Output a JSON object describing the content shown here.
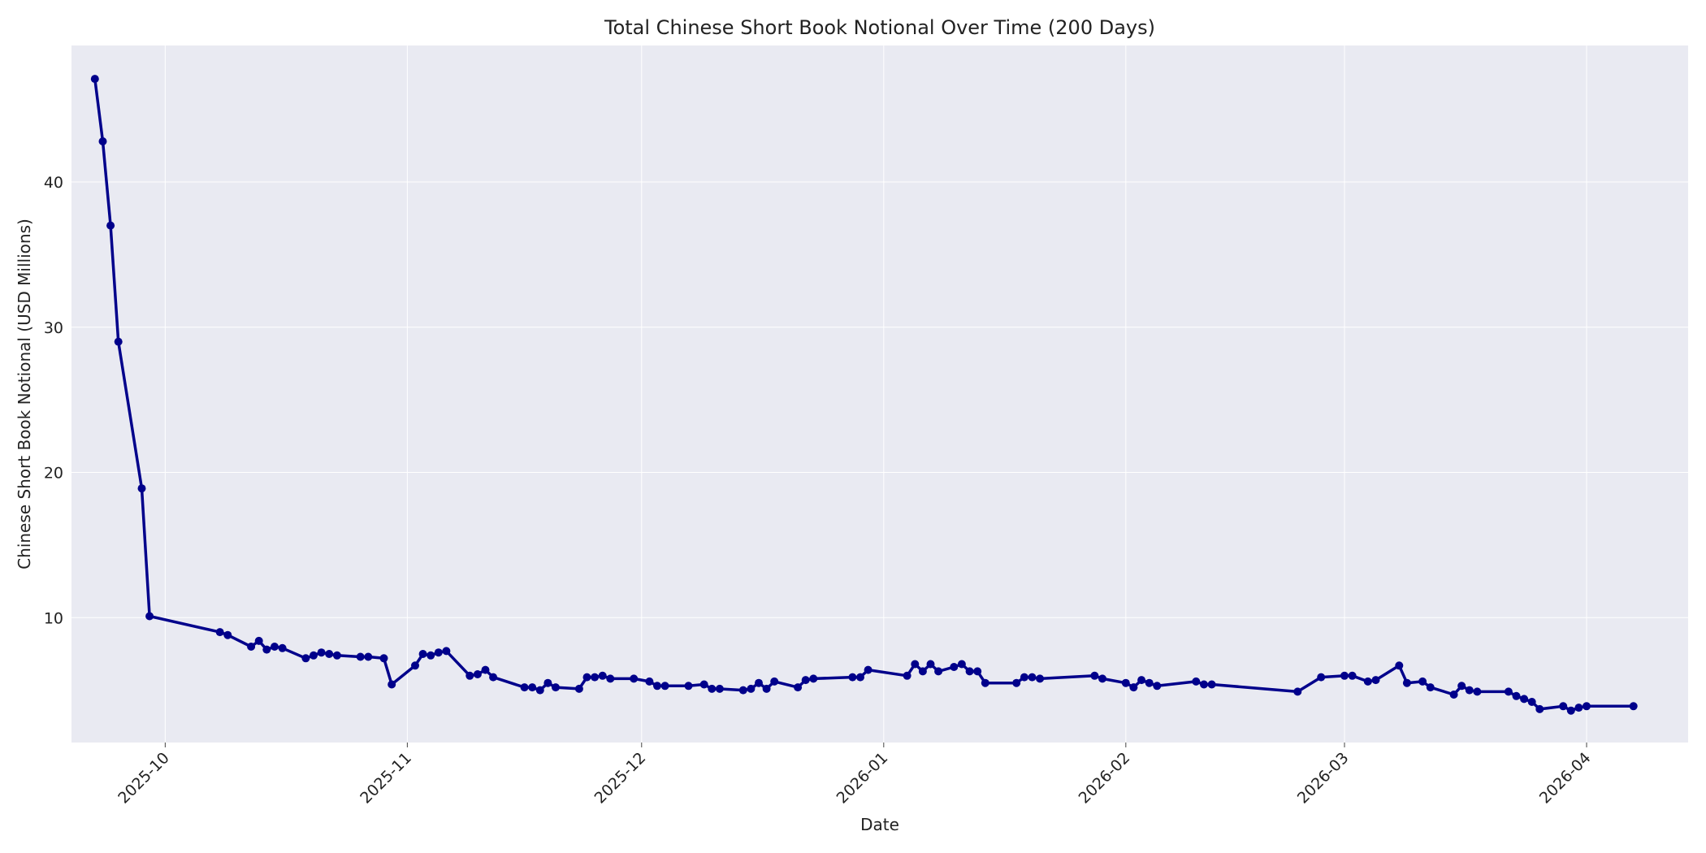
{
  "chart_data": {
    "type": "line",
    "title": "Total Chinese Short Book Notional Over Time (200 Days)",
    "xlabel": "Date",
    "ylabel": "Chinese Short Book Notional (USD Millions)",
    "xlim": [
      "2025-09-19",
      "2026-04-14"
    ],
    "ylim": [
      1.4,
      49.4
    ],
    "x_ticks": [
      "2025-10",
      "2025-11",
      "2025-12",
      "2026-01",
      "2026-02",
      "2026-03",
      "2026-04"
    ],
    "y_ticks": [
      10,
      20,
      30,
      40
    ],
    "grid": true,
    "background": "#e9eaf2",
    "line_color": "#00008b",
    "marker": "circle",
    "series": [
      {
        "x": [
          "2025-09-22",
          "2025-09-23",
          "2025-09-24",
          "2025-09-25",
          "2025-09-28",
          "2025-09-29",
          "2025-10-08",
          "2025-10-09",
          "2025-10-12",
          "2025-10-13",
          "2025-10-14",
          "2025-10-15",
          "2025-10-16",
          "2025-10-19",
          "2025-10-20",
          "2025-10-21",
          "2025-10-22",
          "2025-10-23",
          "2025-10-26",
          "2025-10-27",
          "2025-10-29",
          "2025-10-30",
          "2025-11-02",
          "2025-11-03",
          "2025-11-04",
          "2025-11-05",
          "2025-11-06",
          "2025-11-09",
          "2025-11-10",
          "2025-11-11",
          "2025-11-12",
          "2025-11-16",
          "2025-11-17",
          "2025-11-18",
          "2025-11-19",
          "2025-11-20",
          "2025-11-23",
          "2025-11-24",
          "2025-11-25",
          "2025-11-26",
          "2025-11-27",
          "2025-11-30",
          "2025-12-02",
          "2025-12-03",
          "2025-12-04",
          "2025-12-07",
          "2025-12-09",
          "2025-12-10",
          "2025-12-11",
          "2025-12-14",
          "2025-12-15",
          "2025-12-16",
          "2025-12-17",
          "2025-12-18",
          "2025-12-21",
          "2025-12-22",
          "2025-12-23",
          "2025-12-28",
          "2025-12-29",
          "2025-12-30",
          "2026-01-04",
          "2026-01-05",
          "2026-01-06",
          "2026-01-07",
          "2026-01-08",
          "2026-01-10",
          "2026-01-11",
          "2026-01-12",
          "2026-01-13",
          "2026-01-14",
          "2026-01-18",
          "2026-01-19",
          "2026-01-20",
          "2026-01-21",
          "2026-01-28",
          "2026-01-29",
          "2026-02-01",
          "2026-02-02",
          "2026-02-03",
          "2026-02-04",
          "2026-02-05",
          "2026-02-10",
          "2026-02-11",
          "2026-02-12",
          "2026-02-23",
          "2026-02-26",
          "2026-03-01",
          "2026-03-02",
          "2026-03-04",
          "2026-03-05",
          "2026-03-08",
          "2026-03-09",
          "2026-03-11",
          "2026-03-12",
          "2026-03-15",
          "2026-03-16",
          "2026-03-17",
          "2026-03-18",
          "2026-03-22",
          "2026-03-23",
          "2026-03-24",
          "2026-03-25",
          "2026-03-26",
          "2026-03-29",
          "2026-03-30",
          "2026-03-31",
          "2026-04-01",
          "2026-04-07"
        ],
        "y": [
          47.1,
          42.8,
          37.0,
          29.0,
          18.9,
          10.1,
          9.0,
          8.8,
          8.0,
          8.4,
          7.8,
          8.0,
          7.9,
          7.2,
          7.4,
          7.6,
          7.5,
          7.4,
          7.3,
          7.3,
          7.2,
          5.4,
          6.7,
          7.5,
          7.4,
          7.6,
          7.7,
          6.0,
          6.1,
          6.4,
          5.9,
          5.2,
          5.2,
          5.0,
          5.5,
          5.2,
          5.1,
          5.9,
          5.9,
          6.0,
          5.8,
          5.8,
          5.6,
          5.3,
          5.3,
          5.3,
          5.4,
          5.1,
          5.1,
          5.0,
          5.1,
          5.5,
          5.1,
          5.6,
          5.2,
          5.7,
          5.8,
          5.9,
          5.9,
          6.4,
          6.0,
          6.8,
          6.3,
          6.8,
          6.3,
          6.6,
          6.8,
          6.3,
          6.3,
          5.5,
          5.5,
          5.9,
          5.9,
          5.8,
          6.0,
          5.8,
          5.5,
          5.2,
          5.7,
          5.5,
          5.3,
          5.6,
          5.4,
          5.4,
          4.9,
          5.9,
          6.0,
          6.0,
          5.6,
          5.7,
          6.7,
          5.5,
          5.6,
          5.2,
          4.7,
          5.3,
          5.0,
          4.9,
          4.9,
          4.6,
          4.4,
          4.2,
          3.7,
          3.9,
          3.6,
          3.8,
          3.9,
          3.9
        ]
      }
    ]
  }
}
